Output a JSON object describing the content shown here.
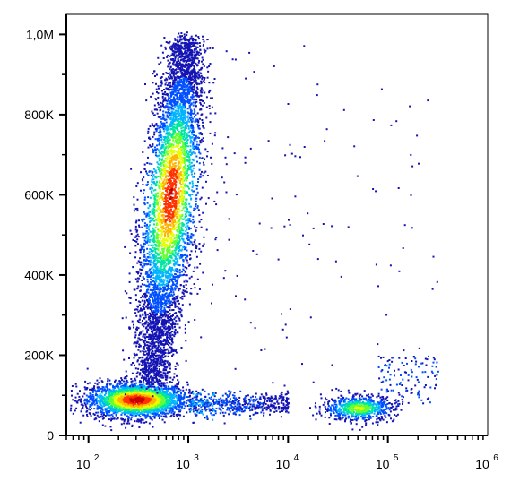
{
  "chart_data": {
    "type": "scatter",
    "title": "",
    "xlabel": "",
    "ylabel": "",
    "x_scale": "log",
    "xlim": [
      60,
      1000000
    ],
    "ylim": [
      0,
      1050000
    ],
    "grid": false,
    "legend": "none",
    "x_ticks": [
      {
        "base": "10",
        "exp": "2",
        "value": 100
      },
      {
        "base": "10",
        "exp": "3",
        "value": 1000
      },
      {
        "base": "10",
        "exp": "4",
        "value": 10000
      },
      {
        "base": "10",
        "exp": "5",
        "value": 100000
      },
      {
        "base": "10",
        "exp": "6",
        "value": 1000000
      }
    ],
    "y_ticks": [
      {
        "label": "0",
        "value": 0
      },
      {
        "label": "200K",
        "value": 200000
      },
      {
        "label": "400K",
        "value": 400000
      },
      {
        "label": "600K",
        "value": 600000
      },
      {
        "label": "800K",
        "value": 800000
      },
      {
        "label": "1,0M",
        "value": 1000000
      }
    ],
    "populations": [
      {
        "shape": "ellipse",
        "center_x": 300,
        "center_y": 90000,
        "spread_log_x": 0.25,
        "spread_y": 22000,
        "peak_density": 1.0
      },
      {
        "shape": "elongated",
        "x_at_bottom": 420,
        "x_at_top": 950,
        "y_range": [
          130000,
          990000
        ],
        "peak_y": 600000,
        "peak_density": 0.95
      },
      {
        "shape": "ellipse",
        "center_x": 50000,
        "center_y": 70000,
        "spread_log_x": 0.18,
        "spread_y": 16000,
        "peak_density": 0.6
      },
      {
        "shape": "tail",
        "from_x": 1000,
        "to_x": 10000,
        "center_y": 80000,
        "peak_density": 0.3
      }
    ],
    "colormap": [
      "#1414b4",
      "#0050ff",
      "#00b4ff",
      "#00e6a0",
      "#64ff32",
      "#e6ff00",
      "#ffb400",
      "#ff3200",
      "#c80000"
    ]
  }
}
